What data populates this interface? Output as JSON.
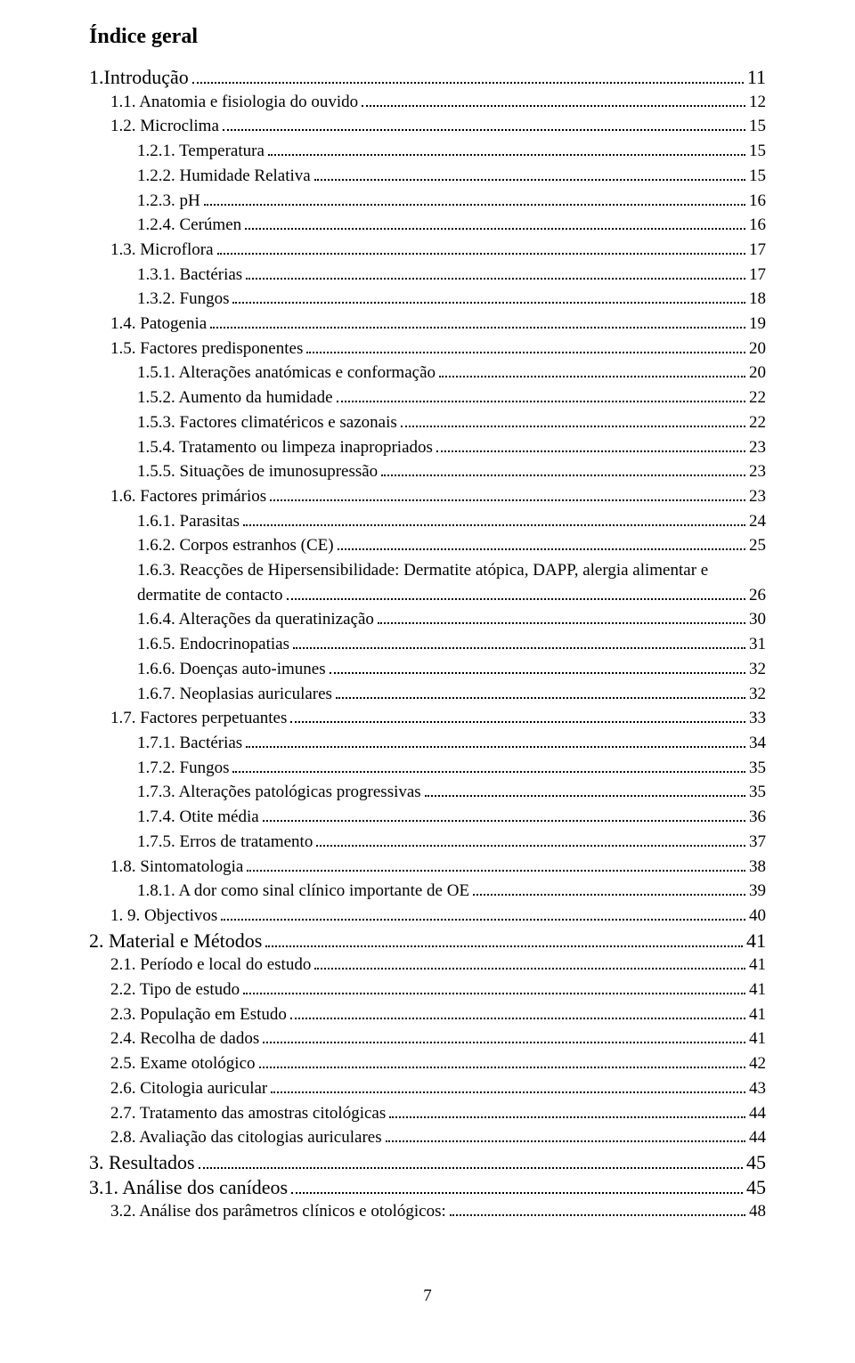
{
  "title": "Índice geral",
  "pageNumber": "7",
  "entries": [
    {
      "label": "1.Introdução",
      "page": "11",
      "indent": 0,
      "section": true
    },
    {
      "label": "1.1. Anatomia e fisiologia do ouvido",
      "page": "12",
      "indent": 1
    },
    {
      "label": "1.2. Microclima",
      "page": "15",
      "indent": 1
    },
    {
      "label": "1.2.1. Temperatura",
      "page": "15",
      "indent": 2
    },
    {
      "label": "1.2.2. Humidade Relativa",
      "page": "15",
      "indent": 2
    },
    {
      "label": "1.2.3. pH",
      "page": "16",
      "indent": 2
    },
    {
      "label": "1.2.4. Cerúmen",
      "page": "16",
      "indent": 2
    },
    {
      "label": "1.3. Microflora",
      "page": "17",
      "indent": 1
    },
    {
      "label": "1.3.1. Bactérias",
      "page": "17",
      "indent": 2
    },
    {
      "label": "1.3.2. Fungos",
      "page": "18",
      "indent": 2
    },
    {
      "label": "1.4. Patogenia",
      "page": "19",
      "indent": 1
    },
    {
      "label": "1.5. Factores predisponentes",
      "page": "20",
      "indent": 1
    },
    {
      "label": "1.5.1. Alterações anatómicas e conformação",
      "page": "20",
      "indent": 2
    },
    {
      "label": "1.5.2. Aumento da humidade",
      "page": "22",
      "indent": 2
    },
    {
      "label": "1.5.3. Factores climatéricos e sazonais",
      "page": "22",
      "indent": 2
    },
    {
      "label": "1.5.4. Tratamento ou limpeza inapropriados",
      "page": "23",
      "indent": 2
    },
    {
      "label": "1.5.5. Situações de imunosupressão",
      "page": "23",
      "indent": 2
    },
    {
      "label": "1.6. Factores primários",
      "page": "23",
      "indent": 1
    },
    {
      "label": "1.6.1. Parasitas",
      "page": "24",
      "indent": 2
    },
    {
      "label": "1.6.2. Corpos estranhos (CE)",
      "page": "25",
      "indent": 2
    },
    {
      "label": "1.6.3. Reacções de Hipersensibilidade: Dermatite atópica, DAPP, alergia alimentar e dermatite de contacto",
      "page": "26",
      "indent": 2,
      "wrap": true,
      "wrapIndent": 2
    },
    {
      "label": "1.6.4. Alterações da queratinização",
      "page": "30",
      "indent": 2
    },
    {
      "label": "1.6.5. Endocrinopatias",
      "page": "31",
      "indent": 2
    },
    {
      "label": "1.6.6. Doenças auto-imunes",
      "page": "32",
      "indent": 2
    },
    {
      "label": "1.6.7. Neoplasias auriculares",
      "page": "32",
      "indent": 2
    },
    {
      "label": "1.7. Factores perpetuantes",
      "page": "33",
      "indent": 1
    },
    {
      "label": "1.7.1. Bactérias",
      "page": "34",
      "indent": 2
    },
    {
      "label": "1.7.2. Fungos",
      "page": "35",
      "indent": 2
    },
    {
      "label": "1.7.3. Alterações patológicas progressivas",
      "page": "35",
      "indent": 2
    },
    {
      "label": "1.7.4. Otite média",
      "page": "36",
      "indent": 2
    },
    {
      "label": "1.7.5. Erros de tratamento",
      "page": "37",
      "indent": 2
    },
    {
      "label": "1.8. Sintomatologia",
      "page": "38",
      "indent": 1
    },
    {
      "label": "1.8.1. A dor como sinal clínico importante de OE",
      "page": "39",
      "indent": 2
    },
    {
      "label": "1. 9. Objectivos",
      "page": "40",
      "indent": 1
    },
    {
      "label": "2. Material e Métodos",
      "page": "41",
      "indent": 0,
      "section": true
    },
    {
      "label": "2.1. Período e local do estudo",
      "page": "41",
      "indent": 1
    },
    {
      "label": "2.2. Tipo de estudo",
      "page": "41",
      "indent": 1
    },
    {
      "label": "2.3. População em Estudo",
      "page": "41",
      "indent": 1
    },
    {
      "label": "2.4. Recolha de dados",
      "page": "41",
      "indent": 1
    },
    {
      "label": "2.5. Exame otológico",
      "page": "42",
      "indent": 1
    },
    {
      "label": "2.6. Citologia auricular",
      "page": "43",
      "indent": 1
    },
    {
      "label": "2.7. Tratamento das amostras citológicas",
      "page": "44",
      "indent": 1
    },
    {
      "label": "2.8. Avaliação das citologias auriculares",
      "page": "44",
      "indent": 1
    },
    {
      "label": "3. Resultados",
      "page": "45",
      "indent": 0,
      "section": true
    },
    {
      "label": "3.1. Análise dos canídeos",
      "page": "45",
      "indent": 0,
      "section": true
    },
    {
      "label": "3.2. Análise dos parâmetros clínicos e otológicos:",
      "page": "48",
      "indent": 1
    }
  ]
}
